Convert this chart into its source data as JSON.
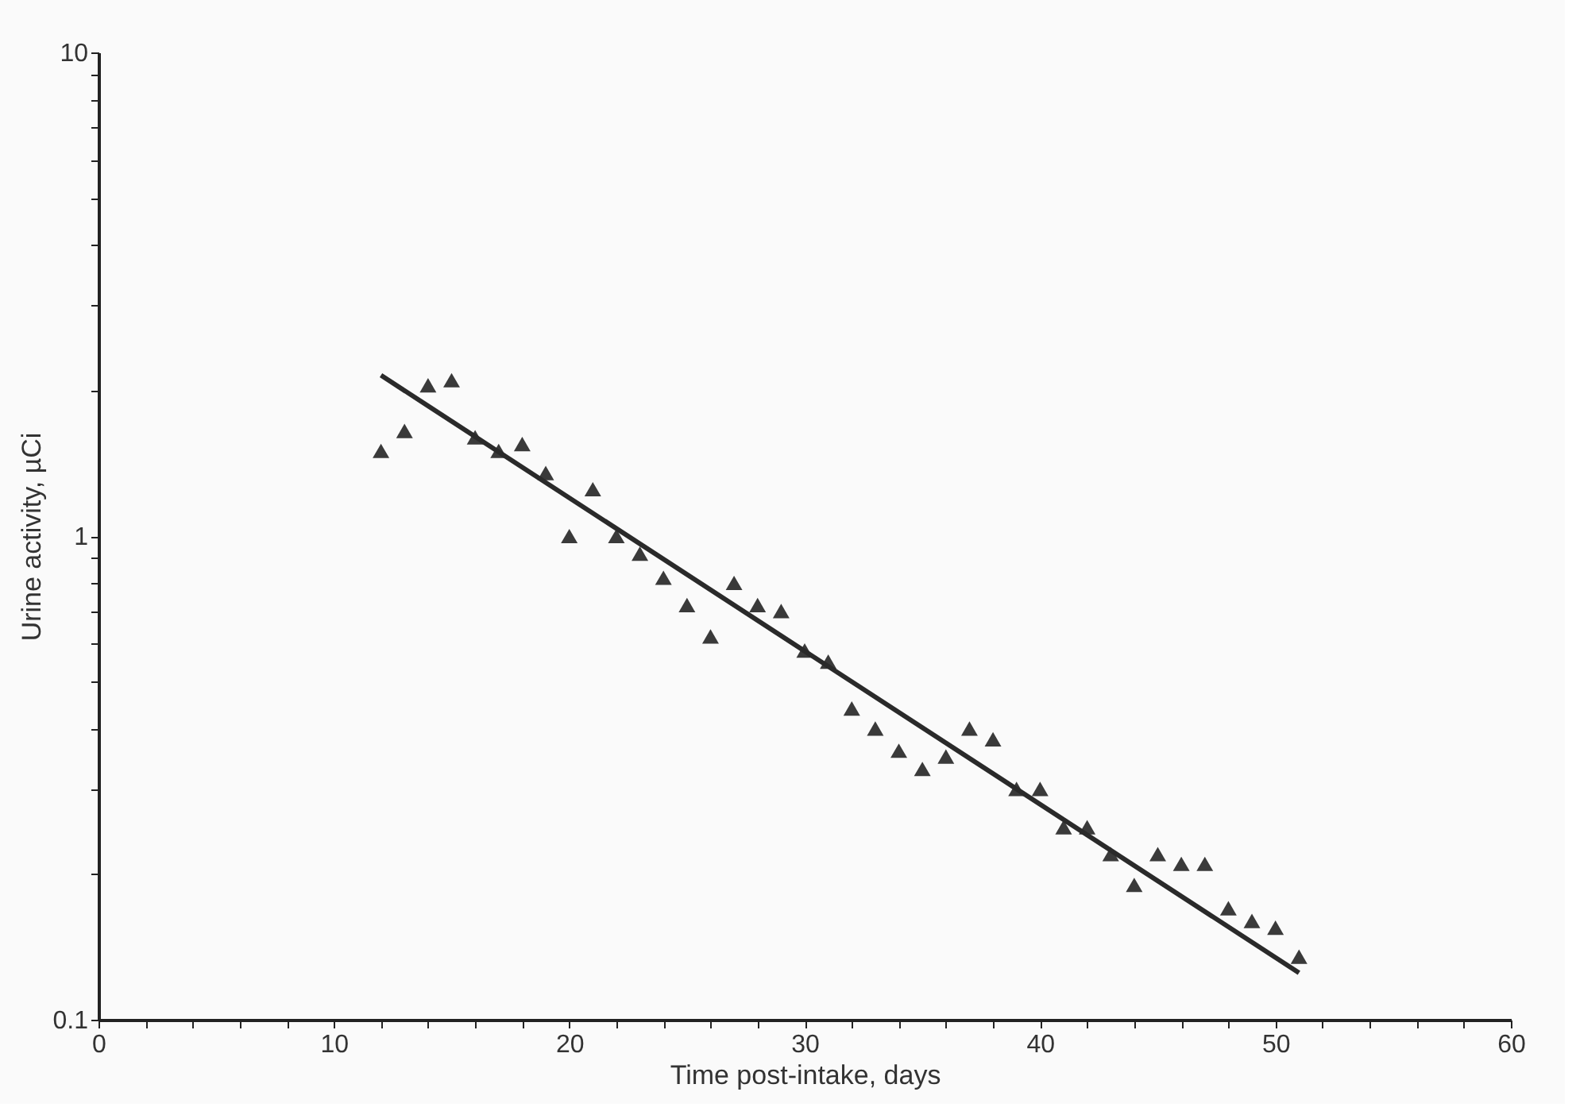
{
  "chart_data": {
    "type": "scatter",
    "xlabel": "Time post-intake, days",
    "ylabel": "Urine activity, µCi",
    "log": "y",
    "grid": false,
    "xlim": [
      0,
      60
    ],
    "ylim": [
      0.1,
      10
    ],
    "xticks": [
      0,
      {
        "value": 2,
        "label": null
      },
      {
        "value": 4,
        "label": null
      },
      {
        "value": 6,
        "label": null
      },
      {
        "value": 8,
        "label": null
      },
      10,
      {
        "value": 12,
        "label": null
      },
      {
        "value": 14,
        "label": null
      },
      {
        "value": 16,
        "label": null
      },
      {
        "value": 18,
        "label": null
      },
      20,
      {
        "value": 22,
        "label": null
      },
      {
        "value": 24,
        "label": null
      },
      {
        "value": 26,
        "label": null
      },
      {
        "value": 28,
        "label": null
      },
      30,
      {
        "value": 32,
        "label": null
      },
      {
        "value": 34,
        "label": null
      },
      {
        "value": 36,
        "label": null
      },
      {
        "value": 38,
        "label": null
      },
      40,
      {
        "value": 42,
        "label": null
      },
      {
        "value": 44,
        "label": null
      },
      {
        "value": 46,
        "label": null
      },
      {
        "value": 48,
        "label": null
      },
      50,
      {
        "value": 52,
        "label": null
      },
      {
        "value": 54,
        "label": null
      },
      {
        "value": 56,
        "label": null
      },
      {
        "value": 58,
        "label": null
      },
      60
    ],
    "yticks": [
      0.1,
      {
        "value": 0.2,
        "label": null
      },
      {
        "value": 0.3,
        "label": null
      },
      {
        "value": 0.4,
        "label": null
      },
      {
        "value": 0.5,
        "label": null
      },
      {
        "value": 0.6,
        "label": null
      },
      {
        "value": 0.7,
        "label": null
      },
      {
        "value": 0.8,
        "label": null
      },
      {
        "value": 0.9,
        "label": null
      },
      1,
      {
        "value": 2,
        "label": null
      },
      {
        "value": 3,
        "label": null
      },
      {
        "value": 4,
        "label": null
      },
      {
        "value": 5,
        "label": null
      },
      {
        "value": 6,
        "label": null
      },
      {
        "value": 7,
        "label": null
      },
      {
        "value": 8,
        "label": null
      },
      {
        "value": 9,
        "label": null
      },
      10
    ],
    "series": [
      {
        "marker": "triangle",
        "color": "#3a3a3a",
        "x": [
          12,
          13,
          14,
          15,
          16,
          17,
          18,
          19,
          20,
          21,
          22,
          23,
          24,
          25,
          26,
          27,
          28,
          29,
          30,
          31,
          32,
          33,
          34,
          35,
          36,
          37,
          38,
          39,
          40,
          41,
          42,
          43,
          44,
          45,
          46,
          47,
          48,
          49,
          50,
          51
        ],
        "values": [
          1.5,
          1.65,
          2.05,
          2.1,
          1.6,
          1.5,
          1.55,
          1.35,
          1.0,
          1.25,
          1.0,
          0.92,
          0.82,
          0.72,
          0.62,
          0.8,
          0.72,
          0.7,
          0.58,
          0.55,
          0.44,
          0.4,
          0.36,
          0.33,
          0.35,
          0.4,
          0.38,
          0.3,
          0.3,
          0.25,
          0.25,
          0.22,
          0.19,
          0.22,
          0.21,
          0.21,
          0.17,
          0.16,
          0.155,
          0.135
        ]
      },
      {
        "type": "line",
        "marker": "none",
        "line_style": "solid",
        "color": "#2a2a2a",
        "x": [
          12,
          51
        ],
        "values": [
          2.15,
          0.125
        ]
      }
    ]
  }
}
